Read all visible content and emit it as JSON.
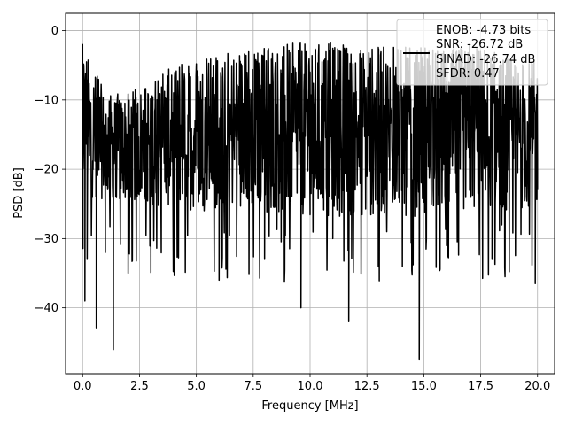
{
  "chart_data": {
    "type": "line",
    "title": "",
    "xlabel": "Frequency [MHz]",
    "ylabel": "PSD [dB]",
    "xlim": [
      -0.75,
      20.75
    ],
    "ylim": [
      -49.5,
      2.5
    ],
    "grid": true,
    "legend_position": "top-right",
    "x_ticks": [
      {
        "value": 0.0,
        "label": "0.0"
      },
      {
        "value": 2.5,
        "label": "2.5"
      },
      {
        "value": 5.0,
        "label": "5.0"
      },
      {
        "value": 7.5,
        "label": "7.5"
      },
      {
        "value": 10.0,
        "label": "10.0"
      },
      {
        "value": 12.5,
        "label": "12.5"
      },
      {
        "value": 15.0,
        "label": "15.0"
      },
      {
        "value": 17.5,
        "label": "17.5"
      },
      {
        "value": 20.0,
        "label": "20.0"
      }
    ],
    "y_ticks": [
      {
        "value": 0,
        "label": "0"
      },
      {
        "value": -10,
        "label": "−10"
      },
      {
        "value": -20,
        "label": "−20"
      },
      {
        "value": -30,
        "label": "−30"
      },
      {
        "value": -40,
        "label": "−40"
      }
    ],
    "legend": {
      "lines": [
        "ENOB: -4.73 bits",
        "SNR: -26.72 dB",
        "SINAD: -26.74 dB",
        "SFDR: 0.47"
      ]
    },
    "series": [
      {
        "color": "#000000",
        "x": [
          0.0,
          0.02,
          0.05,
          0.1,
          0.15,
          0.2,
          0.25,
          0.3,
          0.6,
          1.0,
          1.35,
          1.5,
          2.0,
          2.5,
          3.0,
          3.5,
          4.0,
          5.0,
          6.0,
          7.0,
          8.0,
          9.0,
          9.6,
          10.0,
          11.0,
          11.7,
          12.0,
          13.0,
          14.0,
          14.8,
          15.0,
          16.0,
          17.0,
          18.0,
          19.0,
          19.9,
          20.0
        ],
        "y": [
          -2.0,
          -8.0,
          -5.0,
          -39.0,
          -9.0,
          -33.0,
          -12.0,
          -18.0,
          -43.0,
          -13.0,
          -46.0,
          -20.0,
          -35.0,
          -22.0,
          -26.0,
          -10.0,
          -31.0,
          -8.0,
          -36.0,
          -5.0,
          -33.0,
          -2.0,
          -40.0,
          -6.0,
          -30.0,
          -42.0,
          -5.0,
          -34.0,
          -3.0,
          -47.5,
          -6.0,
          -31.0,
          -2.0,
          -33.0,
          -5.0,
          -36.5,
          -23.0
        ],
        "envelope_upper": [
          {
            "x": 0.0,
            "y": -2.0
          },
          {
            "x": 1.0,
            "y": -9.0
          },
          {
            "x": 2.0,
            "y": -9.0
          },
          {
            "x": 2.5,
            "y": -8.0
          },
          {
            "x": 3.0,
            "y": -6.5
          },
          {
            "x": 5.0,
            "y": -4.0
          },
          {
            "x": 7.5,
            "y": -2.5
          },
          {
            "x": 10.0,
            "y": -1.5
          },
          {
            "x": 12.5,
            "y": -2.0
          },
          {
            "x": 15.0,
            "y": -2.5
          },
          {
            "x": 17.5,
            "y": -2.5
          },
          {
            "x": 20.0,
            "y": -4.5
          }
        ],
        "envelope_lower": [
          {
            "x": 0.0,
            "y": -24.0
          },
          {
            "x": 2.5,
            "y": -25.0
          },
          {
            "x": 5.0,
            "y": -26.0
          },
          {
            "x": 7.5,
            "y": -26.0
          },
          {
            "x": 10.0,
            "y": -27.0
          },
          {
            "x": 12.5,
            "y": -27.0
          },
          {
            "x": 15.0,
            "y": -27.0
          },
          {
            "x": 17.5,
            "y": -26.0
          },
          {
            "x": 20.0,
            "y": -26.0
          }
        ]
      }
    ]
  }
}
